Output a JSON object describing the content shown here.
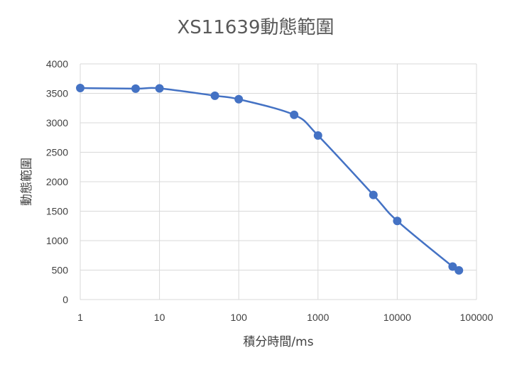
{
  "chart_data": {
    "type": "scatter",
    "title": "XS11639動態範圍",
    "xlabel": "積分時間/ms",
    "ylabel": "動態範圍",
    "x_scale": "log",
    "xlim": [
      1,
      100000
    ],
    "ylim": [
      0,
      4000
    ],
    "x_ticks": [
      "1",
      "10",
      "100",
      "1000",
      "10000",
      "100000"
    ],
    "y_ticks": [
      "0",
      "500",
      "1000",
      "1500",
      "2000",
      "2500",
      "3000",
      "3500",
      "4000"
    ],
    "grid": true,
    "line_style": "smooth",
    "colors": {
      "series": "#4472c4",
      "grid": "#d9d9d9",
      "text": "#404040",
      "title": "#595959"
    },
    "series": [
      {
        "x": [
          1,
          5,
          10,
          50,
          100,
          500,
          1000,
          5000,
          10000,
          50000,
          60000
        ],
        "y": [
          3590,
          3580,
          3585,
          3460,
          3400,
          3135,
          2785,
          1775,
          1335,
          560,
          495
        ]
      }
    ]
  }
}
